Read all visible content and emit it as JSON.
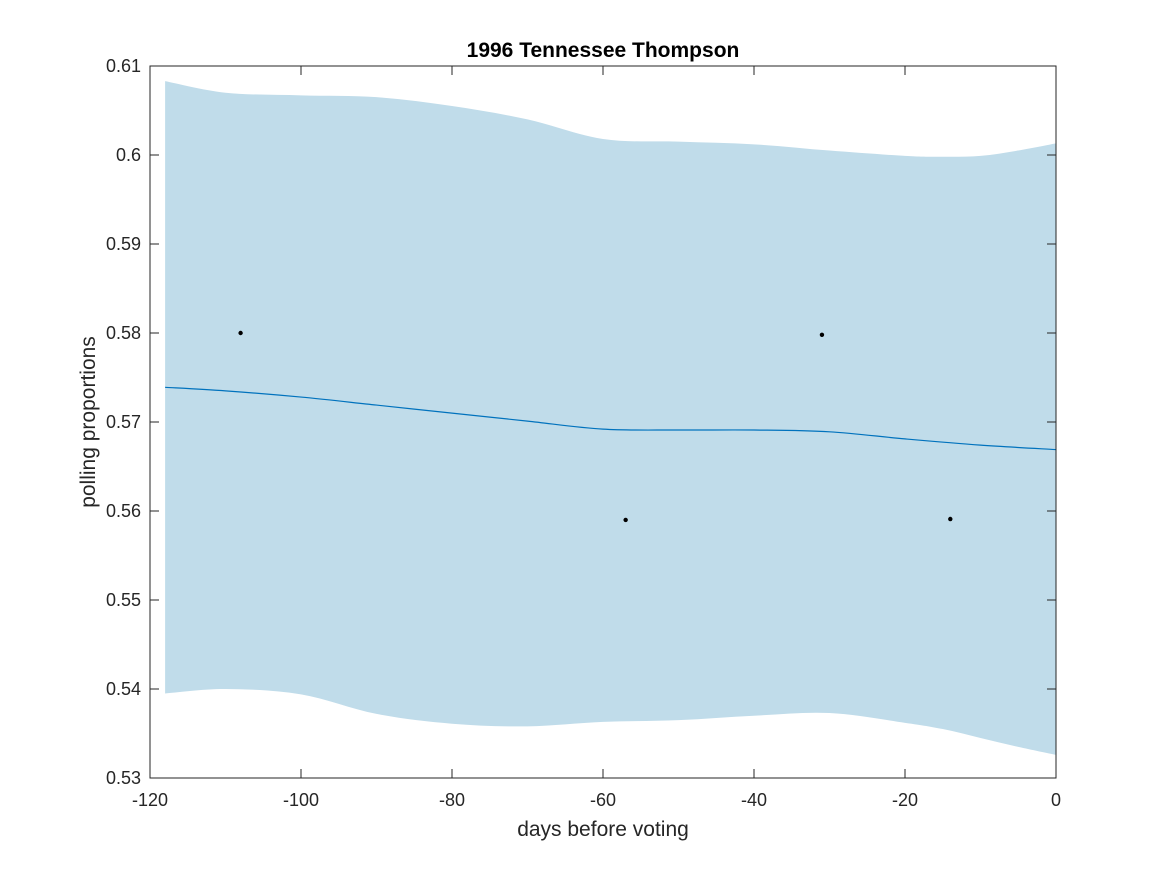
{
  "chart_data": {
    "type": "line",
    "title": "1996 Tennessee Thompson",
    "xlabel": "days before voting",
    "ylabel": "polling proportions",
    "xlim": [
      -120,
      0
    ],
    "ylim": [
      0.53,
      0.61
    ],
    "xticks": [
      -120,
      -100,
      -80,
      -60,
      -40,
      -20,
      0
    ],
    "xtick_labels": [
      "-120",
      "-100",
      "-80",
      "-60",
      "-40",
      "-20",
      "0"
    ],
    "yticks": [
      0.53,
      0.54,
      0.55,
      0.56,
      0.57,
      0.58,
      0.59,
      0.6,
      0.61
    ],
    "ytick_labels": [
      "0.53",
      "0.54",
      "0.55",
      "0.56",
      "0.57",
      "0.58",
      "0.59",
      "0.6",
      "0.61"
    ],
    "grid": false,
    "colors": {
      "band": "#c0dcea",
      "line": "#0072bd",
      "points": "#000000"
    },
    "band": {
      "x": [
        -118,
        -110,
        -100,
        -90,
        -80,
        -70,
        -60,
        -50,
        -40,
        -30,
        -20,
        -15,
        -10,
        -5,
        0
      ],
      "upper": [
        0.6083,
        0.607,
        0.6067,
        0.6065,
        0.6055,
        0.604,
        0.6018,
        0.6015,
        0.6012,
        0.6005,
        0.5999,
        0.5998,
        0.5999,
        0.6005,
        0.6013
      ],
      "lower": [
        0.5395,
        0.54,
        0.5394,
        0.5372,
        0.5361,
        0.5358,
        0.5363,
        0.5365,
        0.537,
        0.5373,
        0.5362,
        0.5355,
        0.5345,
        0.5335,
        0.5326
      ]
    },
    "series": [
      {
        "x": [
          -118,
          -110,
          -100,
          -90,
          -80,
          -70,
          -60,
          -50,
          -40,
          -30,
          -20,
          -10,
          0
        ],
        "y": [
          0.5739,
          0.5735,
          0.5728,
          0.5719,
          0.571,
          0.5701,
          0.5692,
          0.5691,
          0.5691,
          0.5689,
          0.5681,
          0.5674,
          0.5669
        ]
      }
    ],
    "points": [
      {
        "x": -108,
        "y": 0.58
      },
      {
        "x": -57,
        "y": 0.559
      },
      {
        "x": -31,
        "y": 0.5798
      },
      {
        "x": -14,
        "y": 0.5591
      }
    ]
  }
}
